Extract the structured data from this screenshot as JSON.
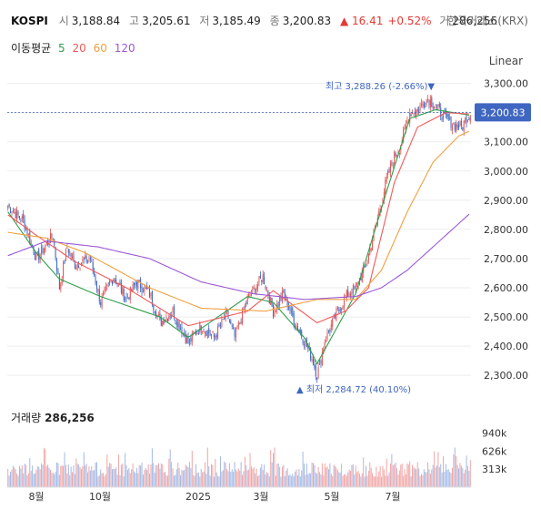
{
  "header": {
    "symbol": "KOSPI",
    "open_label": "시",
    "open": "3,188.84",
    "high_label": "고",
    "high": "3,205.61",
    "low_label": "저",
    "low": "3,185.49",
    "close_label": "종",
    "close": "3,200.83",
    "change": "▲ 16.41",
    "change_pct": "+0.52%",
    "volume_label": "거",
    "volume": "286,256",
    "exchange": "한국거래소(KRX)"
  },
  "ma_legend": {
    "label": "이동평균",
    "periods": [
      "5",
      "20",
      "60",
      "120"
    ],
    "colors": [
      "#2e9e4a",
      "#f05a5a",
      "#f0a040",
      "#9b59d6"
    ]
  },
  "scale_button": "Linear",
  "colors": {
    "up": "#e05555",
    "down": "#3f66c0",
    "vol_up": "#f2a5a5",
    "vol_down": "#a3b9e6",
    "tag": "#3f66c0"
  },
  "chart_data": {
    "type": "candlestick",
    "x_ticks": [
      "8월",
      "10월",
      "2025",
      "3월",
      "5월",
      "7월"
    ],
    "y_ticks": [
      "3,300.00",
      "3,200.00",
      "3,100.00",
      "3,000.00",
      "2,900.00",
      "2,800.00",
      "2,700.00",
      "2,600.00",
      "2,500.00",
      "2,400.00",
      "2,300.00"
    ],
    "ylim": [
      2260,
      3330
    ],
    "last_price_tag": "3,200.83",
    "high_annotation": "최고 3,288.26 (-2.66%)▼",
    "low_annotation": "▲ 최저 2,284.72 (40.10%)",
    "price_anchors": [
      [
        0,
        2880
      ],
      [
        12,
        2830
      ],
      [
        22,
        2700
      ],
      [
        35,
        2780
      ],
      [
        40,
        2600
      ],
      [
        46,
        2740
      ],
      [
        52,
        2680
      ],
      [
        64,
        2700
      ],
      [
        72,
        2550
      ],
      [
        82,
        2640
      ],
      [
        92,
        2560
      ],
      [
        100,
        2620
      ],
      [
        110,
        2580
      ],
      [
        118,
        2480
      ],
      [
        128,
        2520
      ],
      [
        140,
        2410
      ],
      [
        150,
        2470
      ],
      [
        160,
        2430
      ],
      [
        170,
        2510
      ],
      [
        176,
        2430
      ],
      [
        186,
        2560
      ],
      [
        198,
        2640
      ],
      [
        206,
        2520
      ],
      [
        214,
        2580
      ],
      [
        224,
        2470
      ],
      [
        230,
        2420
      ],
      [
        236,
        2360
      ],
      [
        240,
        2300
      ],
      [
        246,
        2420
      ],
      [
        256,
        2520
      ],
      [
        264,
        2580
      ],
      [
        270,
        2600
      ],
      [
        278,
        2680
      ],
      [
        286,
        2820
      ],
      [
        294,
        2970
      ],
      [
        300,
        3050
      ],
      [
        304,
        3080
      ],
      [
        312,
        3200
      ],
      [
        318,
        3210
      ],
      [
        326,
        3250
      ],
      [
        332,
        3220
      ],
      [
        340,
        3180
      ],
      [
        346,
        3160
      ],
      [
        352,
        3150
      ],
      [
        356,
        3180
      ],
      [
        360,
        3200
      ]
    ],
    "ma_series": [
      {
        "name": "5",
        "values": [
          [
            0,
            2860
          ],
          [
            22,
            2720
          ],
          [
            40,
            2630
          ],
          [
            72,
            2570
          ],
          [
            118,
            2500
          ],
          [
            140,
            2430
          ],
          [
            186,
            2570
          ],
          [
            206,
            2550
          ],
          [
            230,
            2430
          ],
          [
            240,
            2340
          ],
          [
            270,
            2580
          ],
          [
            294,
            2930
          ],
          [
            312,
            3180
          ],
          [
            332,
            3210
          ],
          [
            360,
            3190
          ]
        ]
      },
      {
        "name": "20",
        "values": [
          [
            0,
            2850
          ],
          [
            22,
            2780
          ],
          [
            52,
            2690
          ],
          [
            92,
            2600
          ],
          [
            140,
            2470
          ],
          [
            186,
            2520
          ],
          [
            206,
            2590
          ],
          [
            240,
            2480
          ],
          [
            262,
            2520
          ],
          [
            280,
            2600
          ],
          [
            300,
            2960
          ],
          [
            318,
            3150
          ],
          [
            340,
            3200
          ],
          [
            360,
            3195
          ]
        ]
      },
      {
        "name": "60",
        "values": [
          [
            0,
            2790
          ],
          [
            30,
            2770
          ],
          [
            60,
            2720
          ],
          [
            110,
            2600
          ],
          [
            150,
            2530
          ],
          [
            200,
            2520
          ],
          [
            240,
            2560
          ],
          [
            270,
            2560
          ],
          [
            290,
            2660
          ],
          [
            310,
            2860
          ],
          [
            330,
            3030
          ],
          [
            350,
            3120
          ],
          [
            360,
            3140
          ]
        ]
      },
      {
        "name": "120",
        "values": [
          [
            0,
            2710
          ],
          [
            30,
            2760
          ],
          [
            70,
            2740
          ],
          [
            110,
            2700
          ],
          [
            150,
            2620
          ],
          [
            190,
            2580
          ],
          [
            230,
            2560
          ],
          [
            270,
            2570
          ],
          [
            290,
            2600
          ],
          [
            310,
            2660
          ],
          [
            330,
            2740
          ],
          [
            350,
            2820
          ],
          [
            360,
            2860
          ]
        ]
      }
    ],
    "volume": {
      "title": "거래량",
      "value": "286,256",
      "y_ticks": [
        "940k",
        "626k",
        "313k"
      ],
      "ylim": [
        0,
        1150000
      ]
    }
  }
}
